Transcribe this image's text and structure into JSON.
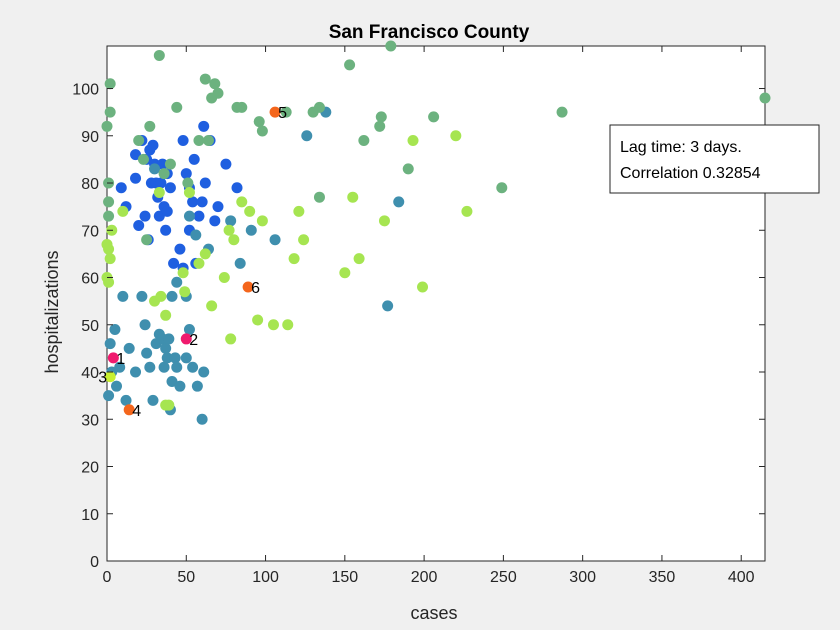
{
  "chart_data": {
    "type": "scatter",
    "title": "San Francisco County",
    "xlabel": "cases",
    "ylabel": "hospitalizations",
    "xlim": [
      0,
      415
    ],
    "ylim": [
      0,
      109
    ],
    "xticks": [
      0,
      50,
      100,
      150,
      200,
      250,
      300,
      350,
      400
    ],
    "yticks": [
      0,
      10,
      20,
      30,
      40,
      50,
      60,
      70,
      80,
      90,
      100
    ],
    "grid": false,
    "colors": {
      "blue": "#1f5fe0",
      "steel": "#3f8fae",
      "sage": "#6cb27f",
      "lime": "#a6e551",
      "highlight_orange": "#f4661c",
      "highlight_pink": "#f01a6e",
      "highlight_lime": "#c8f030"
    },
    "points": [
      {
        "x": 9,
        "y": 79,
        "c": "blue"
      },
      {
        "x": 12,
        "y": 75,
        "c": "blue"
      },
      {
        "x": 18,
        "y": 86,
        "c": "blue"
      },
      {
        "x": 18,
        "y": 81,
        "c": "blue"
      },
      {
        "x": 20,
        "y": 71,
        "c": "blue"
      },
      {
        "x": 22,
        "y": 89,
        "c": "blue"
      },
      {
        "x": 24,
        "y": 73,
        "c": "blue"
      },
      {
        "x": 25,
        "y": 85,
        "c": "blue"
      },
      {
        "x": 26,
        "y": 68,
        "c": "blue"
      },
      {
        "x": 27,
        "y": 87,
        "c": "blue"
      },
      {
        "x": 28,
        "y": 80,
        "c": "blue"
      },
      {
        "x": 29,
        "y": 88,
        "c": "blue"
      },
      {
        "x": 30,
        "y": 84,
        "c": "blue"
      },
      {
        "x": 31,
        "y": 80,
        "c": "blue"
      },
      {
        "x": 32,
        "y": 77,
        "c": "blue"
      },
      {
        "x": 33,
        "y": 73,
        "c": "blue"
      },
      {
        "x": 34,
        "y": 80,
        "c": "blue"
      },
      {
        "x": 35,
        "y": 84,
        "c": "blue"
      },
      {
        "x": 36,
        "y": 75,
        "c": "blue"
      },
      {
        "x": 37,
        "y": 70,
        "c": "blue"
      },
      {
        "x": 38,
        "y": 74,
        "c": "blue"
      },
      {
        "x": 40,
        "y": 79,
        "c": "blue"
      },
      {
        "x": 42,
        "y": 63,
        "c": "blue"
      },
      {
        "x": 48,
        "y": 89,
        "c": "blue"
      },
      {
        "x": 50,
        "y": 82,
        "c": "blue"
      },
      {
        "x": 52,
        "y": 79,
        "c": "blue"
      },
      {
        "x": 54,
        "y": 76,
        "c": "blue"
      },
      {
        "x": 55,
        "y": 85,
        "c": "blue"
      },
      {
        "x": 56,
        "y": 63,
        "c": "blue"
      },
      {
        "x": 58,
        "y": 73,
        "c": "blue"
      },
      {
        "x": 60,
        "y": 76,
        "c": "blue"
      },
      {
        "x": 61,
        "y": 92,
        "c": "blue"
      },
      {
        "x": 62,
        "y": 80,
        "c": "blue"
      },
      {
        "x": 65,
        "y": 89,
        "c": "blue"
      },
      {
        "x": 68,
        "y": 72,
        "c": "blue"
      },
      {
        "x": 70,
        "y": 75,
        "c": "blue"
      },
      {
        "x": 75,
        "y": 84,
        "c": "blue"
      },
      {
        "x": 82,
        "y": 79,
        "c": "blue"
      },
      {
        "x": 46,
        "y": 66,
        "c": "blue"
      },
      {
        "x": 52,
        "y": 70,
        "c": "blue"
      },
      {
        "x": 48,
        "y": 62,
        "c": "blue"
      },
      {
        "x": 38,
        "y": 82,
        "c": "blue"
      },
      {
        "x": 2,
        "y": 46,
        "c": "steel"
      },
      {
        "x": 5,
        "y": 49,
        "c": "steel"
      },
      {
        "x": 6,
        "y": 37,
        "c": "steel"
      },
      {
        "x": 8,
        "y": 41,
        "c": "steel"
      },
      {
        "x": 10,
        "y": 56,
        "c": "steel"
      },
      {
        "x": 12,
        "y": 34,
        "c": "steel"
      },
      {
        "x": 14,
        "y": 45,
        "c": "steel"
      },
      {
        "x": 18,
        "y": 40,
        "c": "steel"
      },
      {
        "x": 22,
        "y": 56,
        "c": "steel"
      },
      {
        "x": 24,
        "y": 50,
        "c": "steel"
      },
      {
        "x": 25,
        "y": 44,
        "c": "steel"
      },
      {
        "x": 27,
        "y": 41,
        "c": "steel"
      },
      {
        "x": 29,
        "y": 34,
        "c": "steel"
      },
      {
        "x": 31,
        "y": 46,
        "c": "steel"
      },
      {
        "x": 33,
        "y": 48,
        "c": "steel"
      },
      {
        "x": 35,
        "y": 47,
        "c": "steel"
      },
      {
        "x": 36,
        "y": 41,
        "c": "steel"
      },
      {
        "x": 37,
        "y": 45,
        "c": "steel"
      },
      {
        "x": 38,
        "y": 43,
        "c": "steel"
      },
      {
        "x": 39,
        "y": 47,
        "c": "steel"
      },
      {
        "x": 41,
        "y": 38,
        "c": "steel"
      },
      {
        "x": 43,
        "y": 43,
        "c": "steel"
      },
      {
        "x": 44,
        "y": 41,
        "c": "steel"
      },
      {
        "x": 46,
        "y": 37,
        "c": "steel"
      },
      {
        "x": 50,
        "y": 43,
        "c": "steel"
      },
      {
        "x": 52,
        "y": 49,
        "c": "steel"
      },
      {
        "x": 54,
        "y": 41,
        "c": "steel"
      },
      {
        "x": 57,
        "y": 37,
        "c": "steel"
      },
      {
        "x": 60,
        "y": 30,
        "c": "steel"
      },
      {
        "x": 61,
        "y": 40,
        "c": "steel"
      },
      {
        "x": 40,
        "y": 32,
        "c": "steel"
      },
      {
        "x": 44,
        "y": 59,
        "c": "steel"
      },
      {
        "x": 50,
        "y": 56,
        "c": "steel"
      },
      {
        "x": 52,
        "y": 73,
        "c": "steel"
      },
      {
        "x": 56,
        "y": 69,
        "c": "steel"
      },
      {
        "x": 64,
        "y": 66,
        "c": "steel"
      },
      {
        "x": 78,
        "y": 72,
        "c": "steel"
      },
      {
        "x": 84,
        "y": 63,
        "c": "steel"
      },
      {
        "x": 91,
        "y": 70,
        "c": "steel"
      },
      {
        "x": 106,
        "y": 68,
        "c": "steel"
      },
      {
        "x": 126,
        "y": 90,
        "c": "steel"
      },
      {
        "x": 138,
        "y": 95,
        "c": "steel"
      },
      {
        "x": 177,
        "y": 54,
        "c": "steel"
      },
      {
        "x": 184,
        "y": 76,
        "c": "steel"
      },
      {
        "x": 30,
        "y": 83,
        "c": "steel"
      },
      {
        "x": 41,
        "y": 56,
        "c": "steel"
      },
      {
        "x": 3,
        "y": 40,
        "c": "steel"
      },
      {
        "x": 1,
        "y": 35,
        "c": "steel"
      },
      {
        "x": 2,
        "y": 101,
        "c": "sage"
      },
      {
        "x": 2,
        "y": 95,
        "c": "sage"
      },
      {
        "x": 0,
        "y": 92,
        "c": "sage"
      },
      {
        "x": 1,
        "y": 80,
        "c": "sage"
      },
      {
        "x": 1,
        "y": 76,
        "c": "sage"
      },
      {
        "x": 1,
        "y": 73,
        "c": "sage"
      },
      {
        "x": 20,
        "y": 89,
        "c": "sage"
      },
      {
        "x": 23,
        "y": 85,
        "c": "sage"
      },
      {
        "x": 27,
        "y": 92,
        "c": "sage"
      },
      {
        "x": 33,
        "y": 107,
        "c": "sage"
      },
      {
        "x": 36,
        "y": 82,
        "c": "sage"
      },
      {
        "x": 44,
        "y": 96,
        "c": "sage"
      },
      {
        "x": 51,
        "y": 80,
        "c": "sage"
      },
      {
        "x": 58,
        "y": 89,
        "c": "sage"
      },
      {
        "x": 62,
        "y": 102,
        "c": "sage"
      },
      {
        "x": 64,
        "y": 89,
        "c": "sage"
      },
      {
        "x": 66,
        "y": 98,
        "c": "sage"
      },
      {
        "x": 68,
        "y": 101,
        "c": "sage"
      },
      {
        "x": 70,
        "y": 99,
        "c": "sage"
      },
      {
        "x": 82,
        "y": 96,
        "c": "sage"
      },
      {
        "x": 85,
        "y": 96,
        "c": "sage"
      },
      {
        "x": 96,
        "y": 93,
        "c": "sage"
      },
      {
        "x": 98,
        "y": 91,
        "c": "sage"
      },
      {
        "x": 113,
        "y": 95,
        "c": "sage"
      },
      {
        "x": 130,
        "y": 95,
        "c": "sage"
      },
      {
        "x": 134,
        "y": 77,
        "c": "sage"
      },
      {
        "x": 134,
        "y": 96,
        "c": "sage"
      },
      {
        "x": 153,
        "y": 105,
        "c": "sage"
      },
      {
        "x": 162,
        "y": 89,
        "c": "sage"
      },
      {
        "x": 172,
        "y": 92,
        "c": "sage"
      },
      {
        "x": 173,
        "y": 94,
        "c": "sage"
      },
      {
        "x": 179,
        "y": 109,
        "c": "sage"
      },
      {
        "x": 190,
        "y": 83,
        "c": "sage"
      },
      {
        "x": 206,
        "y": 94,
        "c": "sage"
      },
      {
        "x": 249,
        "y": 79,
        "c": "sage"
      },
      {
        "x": 287,
        "y": 95,
        "c": "sage"
      },
      {
        "x": 415,
        "y": 98,
        "c": "sage"
      },
      {
        "x": 25,
        "y": 68,
        "c": "sage"
      },
      {
        "x": 40,
        "y": 84,
        "c": "sage"
      },
      {
        "x": 0,
        "y": 67,
        "c": "lime"
      },
      {
        "x": 1,
        "y": 66,
        "c": "lime"
      },
      {
        "x": 2,
        "y": 64,
        "c": "lime"
      },
      {
        "x": 0,
        "y": 60,
        "c": "lime"
      },
      {
        "x": 1,
        "y": 59,
        "c": "lime"
      },
      {
        "x": 3,
        "y": 70,
        "c": "lime"
      },
      {
        "x": 10,
        "y": 74,
        "c": "lime"
      },
      {
        "x": 30,
        "y": 55,
        "c": "lime"
      },
      {
        "x": 34,
        "y": 56,
        "c": "lime"
      },
      {
        "x": 37,
        "y": 52,
        "c": "lime"
      },
      {
        "x": 37,
        "y": 33,
        "c": "lime"
      },
      {
        "x": 39,
        "y": 33,
        "c": "lime"
      },
      {
        "x": 48,
        "y": 61,
        "c": "lime"
      },
      {
        "x": 49,
        "y": 57,
        "c": "lime"
      },
      {
        "x": 52,
        "y": 78,
        "c": "lime"
      },
      {
        "x": 58,
        "y": 63,
        "c": "lime"
      },
      {
        "x": 62,
        "y": 65,
        "c": "lime"
      },
      {
        "x": 66,
        "y": 54,
        "c": "lime"
      },
      {
        "x": 74,
        "y": 60,
        "c": "lime"
      },
      {
        "x": 77,
        "y": 70,
        "c": "lime"
      },
      {
        "x": 78,
        "y": 47,
        "c": "lime"
      },
      {
        "x": 80,
        "y": 68,
        "c": "lime"
      },
      {
        "x": 85,
        "y": 76,
        "c": "lime"
      },
      {
        "x": 90,
        "y": 74,
        "c": "lime"
      },
      {
        "x": 95,
        "y": 51,
        "c": "lime"
      },
      {
        "x": 98,
        "y": 72,
        "c": "lime"
      },
      {
        "x": 105,
        "y": 50,
        "c": "lime"
      },
      {
        "x": 114,
        "y": 50,
        "c": "lime"
      },
      {
        "x": 118,
        "y": 64,
        "c": "lime"
      },
      {
        "x": 121,
        "y": 74,
        "c": "lime"
      },
      {
        "x": 124,
        "y": 68,
        "c": "lime"
      },
      {
        "x": 150,
        "y": 61,
        "c": "lime"
      },
      {
        "x": 155,
        "y": 77,
        "c": "lime"
      },
      {
        "x": 159,
        "y": 64,
        "c": "lime"
      },
      {
        "x": 175,
        "y": 72,
        "c": "lime"
      },
      {
        "x": 193,
        "y": 89,
        "c": "lime"
      },
      {
        "x": 199,
        "y": 58,
        "c": "lime"
      },
      {
        "x": 220,
        "y": 90,
        "c": "lime"
      },
      {
        "x": 227,
        "y": 74,
        "c": "lime"
      },
      {
        "x": 33,
        "y": 78,
        "c": "lime"
      }
    ],
    "labeled_points": [
      {
        "label": "1",
        "x": 4,
        "y": 43,
        "c": "highlight_pink"
      },
      {
        "label": "2",
        "x": 50,
        "y": 47,
        "c": "highlight_pink"
      },
      {
        "label": "3",
        "x": 2,
        "y": 39,
        "c": "highlight_lime"
      },
      {
        "label": "4",
        "x": 14,
        "y": 32,
        "c": "highlight_orange"
      },
      {
        "label": "5",
        "x": 106,
        "y": 95,
        "c": "highlight_orange"
      },
      {
        "label": "6",
        "x": 89,
        "y": 58,
        "c": "highlight_orange"
      }
    ],
    "annotation": {
      "line1": "Lag time: 3 days.",
      "line2": "Correlation 0.32854"
    }
  }
}
